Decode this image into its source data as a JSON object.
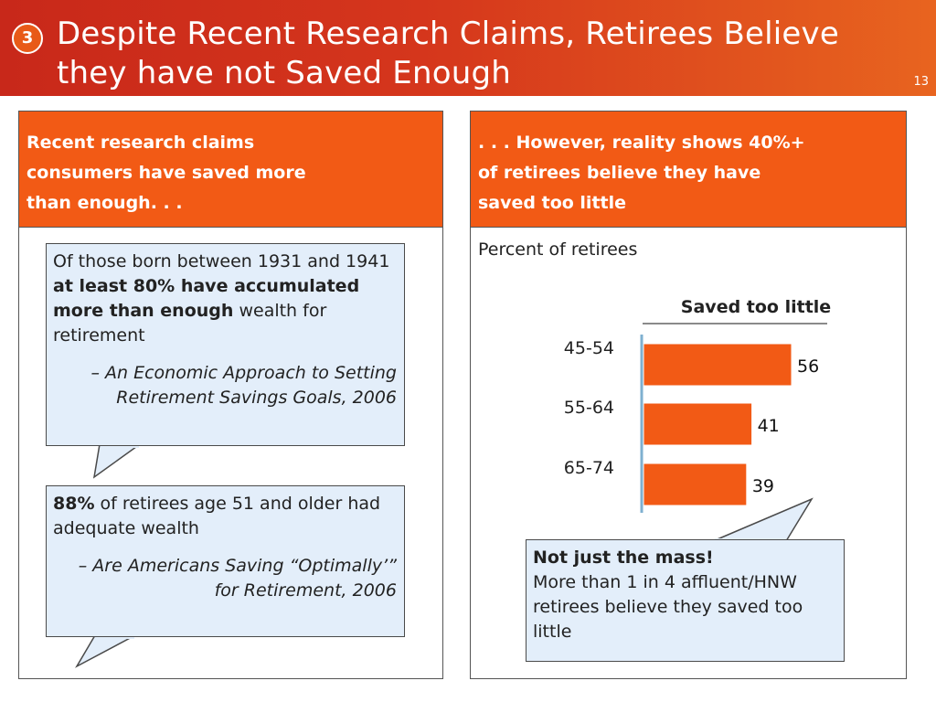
{
  "slide": {
    "badge": "3",
    "title_line1": "Despite Recent Research Claims, Retirees Believe",
    "title_line2": "they have not Saved Enough",
    "page_number": "13"
  },
  "left_panel": {
    "header_line1": "Recent research claims",
    "header_line2": "consumers have saved more",
    "header_line3": "than enough. . .",
    "callout1": {
      "text_plain_1": "Of those born between 1931 and 1941 ",
      "text_bold": "at least 80% have accumulated more than enough",
      "text_plain_2": " wealth for retirement",
      "citation": "– An Economic Approach to Setting Retirement Savings Goals, 2006"
    },
    "callout2": {
      "text_bold": "88%",
      "text_plain": " of retirees age 51 and older had adequate wealth",
      "citation": "– Are Americans Saving “Optimally’” for Retirement, 2006"
    }
  },
  "right_panel": {
    "header_line1": ". . . However, reality shows 40%+",
    "header_line2": "of retirees believe they have",
    "header_line3": "saved too little",
    "callout": {
      "bold": "Not just the mass!",
      "text": "More than 1 in 4 affluent/HNW retirees believe they saved too little"
    }
  },
  "chart_data": {
    "type": "bar",
    "orientation": "horizontal",
    "title": "Percent of retirees",
    "series": [
      {
        "name": "Saved too little",
        "values": [
          56,
          41,
          39
        ]
      }
    ],
    "categories": [
      "45-54",
      "55-64",
      "65-74"
    ],
    "data_labels": [
      "56",
      "41",
      "39"
    ],
    "bar_color": "#f25a15",
    "axis_color": "#7fb0d0",
    "xlim": [
      0,
      70
    ]
  }
}
